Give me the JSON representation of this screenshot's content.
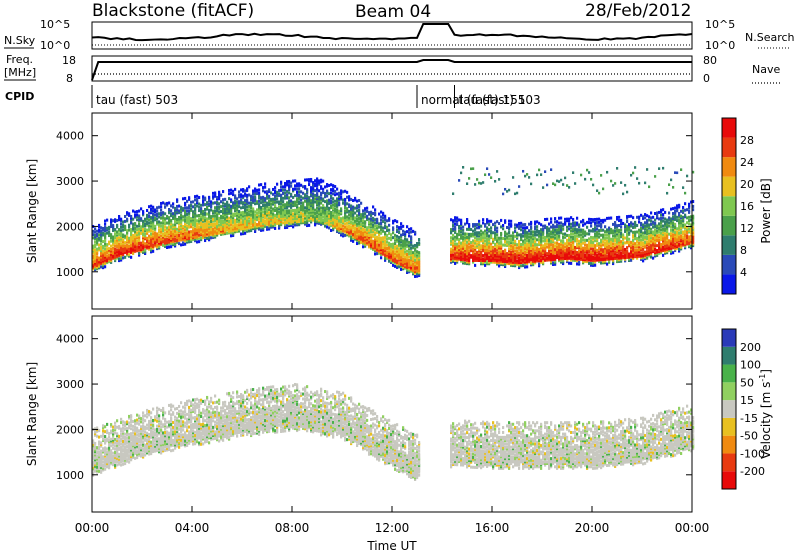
{
  "header": {
    "station": "Blackstone (fitACF)",
    "beam": "Beam 04",
    "date": "28/Feb/2012"
  },
  "top_panel_labels": {
    "nsky": "N.Sky",
    "nsearch": "N.Search",
    "freq_line1": "Freq.",
    "freq_line2": "[MHz]",
    "nave": "Nave",
    "cpid": "CPID",
    "noise_ticks_left": [
      "10^5",
      "10^0"
    ],
    "noise_ticks_right": [
      "10^5",
      "10^0"
    ],
    "freq_ticks_left": [
      "18",
      "8"
    ],
    "nave_ticks_right": [
      "80",
      "0"
    ]
  },
  "cpid_segments": [
    {
      "label": "tau (fast) 503",
      "start_hour": 0.0,
      "end_hour": 13.0
    },
    {
      "label": "normal (fast) 151",
      "start_hour": 13.0,
      "end_hour": 14.5
    },
    {
      "label": "tau (fast) 503",
      "start_hour": 14.5,
      "end_hour": 24.0
    }
  ],
  "colors": {
    "power_scale": [
      "#0a18e8",
      "#2a4ab8",
      "#2f7d6e",
      "#4aa04a",
      "#7fc850",
      "#e8c020",
      "#f08a10",
      "#e83a10",
      "#e80a0a"
    ],
    "velocity_scale": [
      "#2a3ab8",
      "#2f7d6e",
      "#49b24a",
      "#90d060",
      "#c8c8c0",
      "#e8c020",
      "#f08a10",
      "#e83a10",
      "#e80a0a"
    ]
  },
  "chart_data": [
    {
      "type": "heatmap",
      "quantity": "power",
      "xlabel": "Time UT",
      "ylabel": "Slant Range [km]",
      "x_ticks": [
        "00:00",
        "04:00",
        "08:00",
        "12:00",
        "16:00",
        "20:00",
        "00:00"
      ],
      "x_range_hours": [
        0,
        24
      ],
      "y_ticks": [
        1000,
        2000,
        3000,
        4000
      ],
      "ylim": [
        180,
        4500
      ],
      "colorbar": {
        "title": "Power [dB]",
        "ticks": [
          4,
          8,
          12,
          16,
          20,
          24,
          28
        ],
        "range": [
          0,
          30
        ]
      },
      "data_gap_hours": [
        [
          13.1,
          14.3
        ]
      ],
      "dominant_echo_band": {
        "time_hours": [
          0.0,
          1.0,
          2.0,
          3.0,
          4.0,
          5.0,
          6.0,
          7.0,
          8.0,
          9.0,
          10.0,
          11.0,
          12.0,
          12.9,
          14.4,
          15.0,
          16.0,
          17.0,
          18.0,
          19.0,
          20.0,
          21.0,
          22.0,
          23.0,
          24.0
        ],
        "range_km": [
          1100,
          1350,
          1500,
          1650,
          1750,
          1850,
          1950,
          2050,
          2100,
          2150,
          1900,
          1600,
          1250,
          1000,
          1300,
          1250,
          1250,
          1200,
          1250,
          1300,
          1250,
          1300,
          1350,
          1500,
          1650
        ],
        "power_db": [
          26,
          28,
          28,
          26,
          24,
          22,
          20,
          20,
          18,
          16,
          22,
          26,
          26,
          24,
          28,
          30,
          30,
          30,
          30,
          30,
          30,
          30,
          28,
          28,
          26
        ]
      }
    },
    {
      "type": "heatmap",
      "quantity": "velocity",
      "xlabel": "Time UT",
      "ylabel": "Slant Range [km]",
      "x_ticks": [
        "00:00",
        "04:00",
        "08:00",
        "12:00",
        "16:00",
        "20:00",
        "00:00"
      ],
      "x_range_hours": [
        0,
        24
      ],
      "y_ticks": [
        1000,
        2000,
        3000,
        4000
      ],
      "ylim": [
        180,
        4500
      ],
      "colorbar": {
        "title": "Velocity [m s",
        "title_superscript": "-1",
        "title_close": "]",
        "ticks": [
          200,
          100,
          50,
          15,
          -15,
          -50,
          -100,
          -200
        ]
      },
      "data_gap_hours": [
        [
          13.1,
          14.3
        ]
      ],
      "dominant_echo_band": {
        "time_hours": [
          0.0,
          2.0,
          4.0,
          6.0,
          8.0,
          10.0,
          12.0,
          12.9,
          14.4,
          16.0,
          18.0,
          20.0,
          22.0,
          24.0
        ],
        "range_km": [
          1100,
          1500,
          1750,
          1950,
          2100,
          1900,
          1250,
          1000,
          1300,
          1250,
          1250,
          1250,
          1350,
          1650
        ],
        "velocity_ms": [
          0,
          0,
          -10,
          0,
          0,
          0,
          10,
          0,
          0,
          0,
          0,
          0,
          0,
          0
        ]
      }
    }
  ]
}
